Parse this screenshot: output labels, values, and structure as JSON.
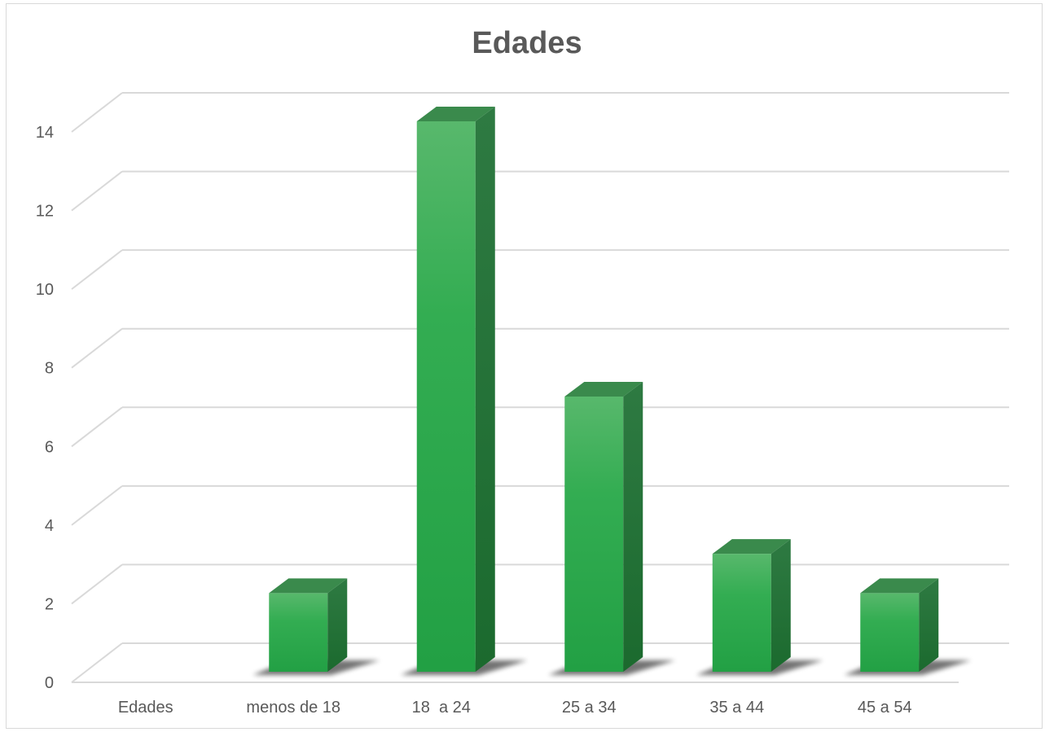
{
  "chart_data": {
    "type": "bar",
    "title": "Edades",
    "xlabel": "",
    "ylabel": "",
    "categories": [
      "Edades",
      "menos de 18",
      "18  a 24",
      "25 a 34",
      "35 a 44",
      "45 a 54"
    ],
    "series": [
      {
        "values": [
          0,
          2,
          14,
          7,
          3,
          2
        ]
      }
    ],
    "ylim": [
      0,
      14
    ],
    "yticks": [
      "0",
      "2",
      "4",
      "6",
      "8",
      "10",
      "12",
      "14"
    ],
    "grid": true,
    "legend": "none",
    "three_d": true,
    "colors": {
      "bar_front": "#2aa84a",
      "bar_top": "#3a8a4c",
      "bar_side": "#1f6e33",
      "gridline": "#d9d9d9",
      "text": "#595959"
    }
  }
}
